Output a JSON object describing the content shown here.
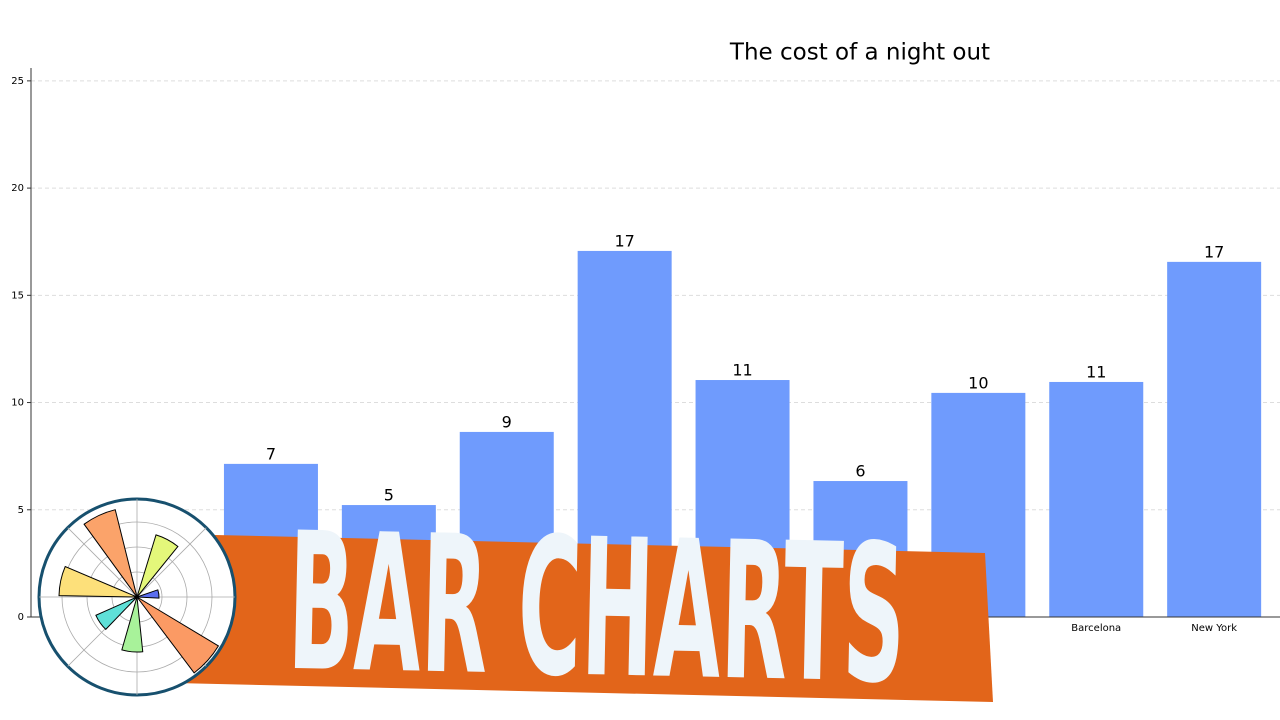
{
  "chart_data": {
    "type": "bar",
    "title": "The cost of a night out",
    "categories": [
      null,
      null,
      null,
      null,
      null,
      null,
      null,
      "Barcelona",
      "New York"
    ],
    "values": [
      7.14,
      5.22,
      8.63,
      17.07,
      11.05,
      6.34,
      10.45,
      10.96,
      16.56
    ],
    "value_labels": [
      "7",
      "5",
      "9",
      "17",
      "11",
      "6",
      "10",
      "11",
      "17"
    ],
    "color": "#6f9bfd",
    "ylim": [
      0,
      25.6
    ],
    "yticks": [
      0,
      5,
      10,
      15,
      20,
      25
    ],
    "grid": true
  },
  "overlay": {
    "banner": "BAR CHARTS"
  }
}
